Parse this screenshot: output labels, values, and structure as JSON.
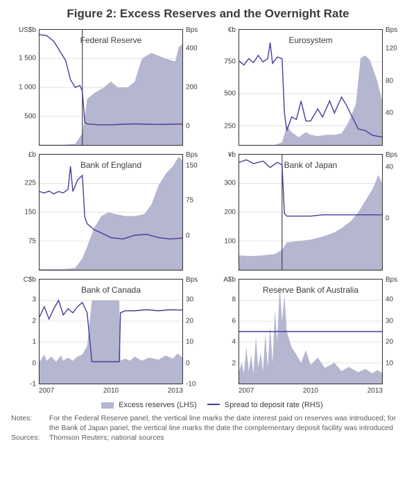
{
  "figure": {
    "title": "Figure 2: Excess Reserves and the Overnight Rate",
    "colors": {
      "area": "#b5b6d0",
      "line": "#4a399b",
      "border": "#2e2e2e",
      "gridline": "#d9d9d9",
      "text": "#3b3b3b",
      "background": "#ffffff"
    },
    "x_range": [
      2007,
      2013
    ],
    "legend": {
      "area": "Excess reserves (LHS)",
      "line": "Spread to deposit rate (RHS)"
    },
    "panels": [
      {
        "title": "Federal Reserve",
        "unit_l": "US$b",
        "unit_r": "Bps",
        "ylim_l": [
          0,
          2000
        ],
        "yticks_l": [
          500,
          1000,
          1500
        ],
        "ylim_r": [
          -100,
          500
        ],
        "yticks_r": [
          0,
          200,
          400
        ],
        "vline_year": 2008.8,
        "area_series": [
          [
            2007,
            5
          ],
          [
            2007.5,
            5
          ],
          [
            2008,
            5
          ],
          [
            2008.5,
            20
          ],
          [
            2008.8,
            200
          ],
          [
            2009,
            800
          ],
          [
            2009.3,
            900
          ],
          [
            2009.7,
            1000
          ],
          [
            2010,
            1100
          ],
          [
            2010.3,
            1000
          ],
          [
            2010.7,
            1000
          ],
          [
            2011,
            1100
          ],
          [
            2011.3,
            1500
          ],
          [
            2011.7,
            1600
          ],
          [
            2012,
            1550
          ],
          [
            2012.3,
            1500
          ],
          [
            2012.7,
            1450
          ],
          [
            2012.85,
            1700
          ],
          [
            2013,
            1750
          ]
        ],
        "line_series": [
          [
            2007,
            475
          ],
          [
            2007.3,
            470
          ],
          [
            2007.6,
            440
          ],
          [
            2007.9,
            380
          ],
          [
            2008.1,
            340
          ],
          [
            2008.3,
            240
          ],
          [
            2008.5,
            200
          ],
          [
            2008.7,
            210
          ],
          [
            2008.8,
            180
          ],
          [
            2008.9,
            20
          ],
          [
            2009,
            10
          ],
          [
            2009.5,
            5
          ],
          [
            2010,
            5
          ],
          [
            2010.5,
            8
          ],
          [
            2011,
            10
          ],
          [
            2011.5,
            8
          ],
          [
            2012,
            7
          ],
          [
            2012.5,
            8
          ],
          [
            2013,
            9
          ]
        ]
      },
      {
        "title": "Eurosystem",
        "unit_l": "€b",
        "unit_r": "Bps",
        "ylim_l": [
          100,
          1000
        ],
        "yticks_l": [
          250,
          500,
          750
        ],
        "ylim_r": [
          0,
          144
        ],
        "yticks_r": [
          40,
          80,
          120
        ],
        "area_series": [
          [
            2007,
            101
          ],
          [
            2007.5,
            101
          ],
          [
            2008,
            101
          ],
          [
            2008.5,
            101
          ],
          [
            2008.8,
            120
          ],
          [
            2009,
            250
          ],
          [
            2009.2,
            200
          ],
          [
            2009.5,
            160
          ],
          [
            2009.8,
            200
          ],
          [
            2010,
            180
          ],
          [
            2010.3,
            170
          ],
          [
            2010.7,
            180
          ],
          [
            2011,
            180
          ],
          [
            2011.3,
            190
          ],
          [
            2011.6,
            280
          ],
          [
            2011.9,
            420
          ],
          [
            2012.1,
            780
          ],
          [
            2012.3,
            800
          ],
          [
            2012.5,
            760
          ],
          [
            2012.8,
            600
          ],
          [
            2013,
            450
          ]
        ],
        "line_series": [
          [
            2007,
            105
          ],
          [
            2007.2,
            100
          ],
          [
            2007.4,
            108
          ],
          [
            2007.6,
            103
          ],
          [
            2007.8,
            112
          ],
          [
            2008,
            104
          ],
          [
            2008.2,
            108
          ],
          [
            2008.3,
            128
          ],
          [
            2008.4,
            102
          ],
          [
            2008.6,
            110
          ],
          [
            2008.8,
            108
          ],
          [
            2008.9,
            40
          ],
          [
            2009,
            18
          ],
          [
            2009.2,
            35
          ],
          [
            2009.4,
            32
          ],
          [
            2009.6,
            55
          ],
          [
            2009.8,
            30
          ],
          [
            2010,
            30
          ],
          [
            2010.3,
            45
          ],
          [
            2010.5,
            35
          ],
          [
            2010.8,
            55
          ],
          [
            2011,
            40
          ],
          [
            2011.3,
            60
          ],
          [
            2011.5,
            50
          ],
          [
            2011.7,
            38
          ],
          [
            2012,
            20
          ],
          [
            2012.3,
            18
          ],
          [
            2012.6,
            12
          ],
          [
            2013,
            10
          ]
        ]
      },
      {
        "title": "Bank of England",
        "unit_l": "£b",
        "unit_r": "Bps",
        "ylim_l": [
          0,
          300
        ],
        "yticks_l": [
          75,
          150,
          225
        ],
        "ylim_r": [
          -75,
          175
        ],
        "yticks_r": [
          0,
          75,
          150
        ],
        "area_series": [
          [
            2007,
            2
          ],
          [
            2007.5,
            2
          ],
          [
            2008,
            2
          ],
          [
            2008.5,
            5
          ],
          [
            2008.8,
            30
          ],
          [
            2009,
            60
          ],
          [
            2009.3,
            110
          ],
          [
            2009.6,
            140
          ],
          [
            2009.9,
            150
          ],
          [
            2010.2,
            145
          ],
          [
            2010.6,
            140
          ],
          [
            2011,
            140
          ],
          [
            2011.4,
            145
          ],
          [
            2011.7,
            170
          ],
          [
            2012,
            220
          ],
          [
            2012.3,
            250
          ],
          [
            2012.6,
            270
          ],
          [
            2012.85,
            295
          ],
          [
            2013,
            285
          ]
        ],
        "line_series": [
          [
            2007,
            95
          ],
          [
            2007.2,
            92
          ],
          [
            2007.4,
            96
          ],
          [
            2007.6,
            90
          ],
          [
            2007.8,
            95
          ],
          [
            2008,
            92
          ],
          [
            2008.2,
            100
          ],
          [
            2008.3,
            150
          ],
          [
            2008.4,
            95
          ],
          [
            2008.6,
            120
          ],
          [
            2008.8,
            130
          ],
          [
            2008.9,
            40
          ],
          [
            2009,
            25
          ],
          [
            2009.3,
            12
          ],
          [
            2009.6,
            5
          ],
          [
            2010,
            -5
          ],
          [
            2010.5,
            -8
          ],
          [
            2011,
            0
          ],
          [
            2011.5,
            2
          ],
          [
            2012,
            -5
          ],
          [
            2012.5,
            -8
          ],
          [
            2013,
            -6
          ]
        ]
      },
      {
        "title": "Bank of Japan",
        "unit_l": "¥b",
        "unit_r": "Bps",
        "ylim_l": [
          0,
          400
        ],
        "yticks_l": [
          100,
          200,
          300
        ],
        "ylim_r": [
          -40,
          50
        ],
        "yticks_r": [
          0,
          40
        ],
        "vline_year": 2008.8,
        "area_series": [
          [
            2007,
            50
          ],
          [
            2007.5,
            48
          ],
          [
            2008,
            50
          ],
          [
            2008.5,
            55
          ],
          [
            2008.8,
            70
          ],
          [
            2009,
            95
          ],
          [
            2009.5,
            100
          ],
          [
            2010,
            105
          ],
          [
            2010.5,
            115
          ],
          [
            2011,
            130
          ],
          [
            2011.3,
            145
          ],
          [
            2011.7,
            170
          ],
          [
            2012,
            200
          ],
          [
            2012.3,
            240
          ],
          [
            2012.6,
            280
          ],
          [
            2012.85,
            330
          ],
          [
            2013,
            300
          ]
        ],
        "line_series": [
          [
            2007,
            44
          ],
          [
            2007.3,
            46
          ],
          [
            2007.6,
            43
          ],
          [
            2008,
            45
          ],
          [
            2008.3,
            40
          ],
          [
            2008.6,
            44
          ],
          [
            2008.8,
            42
          ],
          [
            2008.9,
            4
          ],
          [
            2009,
            2
          ],
          [
            2009.5,
            2
          ],
          [
            2010,
            2
          ],
          [
            2010.5,
            3
          ],
          [
            2011,
            3
          ],
          [
            2011.5,
            3
          ],
          [
            2012,
            3
          ],
          [
            2012.5,
            3
          ],
          [
            2013,
            3
          ]
        ]
      },
      {
        "title": "Bank of Canada",
        "unit_l": "C$b",
        "unit_r": "Bps",
        "ylim_l": [
          -1,
          4
        ],
        "yticks_l": [
          -1,
          0,
          1,
          2,
          3
        ],
        "ylim_r": [
          -10,
          40
        ],
        "yticks_r": [
          -10,
          0,
          10,
          20,
          30
        ],
        "area_series": [
          [
            2007,
            0.05
          ],
          [
            2007.2,
            0.4
          ],
          [
            2007.3,
            0.1
          ],
          [
            2007.5,
            0.3
          ],
          [
            2007.7,
            0.05
          ],
          [
            2007.9,
            0.35
          ],
          [
            2008,
            0.1
          ],
          [
            2008.2,
            0.25
          ],
          [
            2008.4,
            0.1
          ],
          [
            2008.6,
            0.3
          ],
          [
            2008.8,
            0.4
          ],
          [
            2009,
            0.8
          ],
          [
            2009.2,
            3.0
          ],
          [
            2009.4,
            3.0
          ],
          [
            2009.6,
            3.0
          ],
          [
            2009.8,
            3.0
          ],
          [
            2010,
            3.0
          ],
          [
            2010.2,
            3.0
          ],
          [
            2010.35,
            3.0
          ],
          [
            2010.4,
            0.1
          ],
          [
            2010.6,
            0.2
          ],
          [
            2010.8,
            0.1
          ],
          [
            2011,
            0.3
          ],
          [
            2011.3,
            0.1
          ],
          [
            2011.6,
            0.25
          ],
          [
            2012,
            0.15
          ],
          [
            2012.3,
            0.35
          ],
          [
            2012.6,
            0.2
          ],
          [
            2012.8,
            0.45
          ],
          [
            2013,
            0.25
          ]
        ],
        "line_series": [
          [
            2007,
            22
          ],
          [
            2007.2,
            27
          ],
          [
            2007.4,
            21
          ],
          [
            2007.6,
            26
          ],
          [
            2007.8,
            30
          ],
          [
            2008,
            23
          ],
          [
            2008.2,
            26
          ],
          [
            2008.4,
            24
          ],
          [
            2008.6,
            27
          ],
          [
            2008.8,
            29
          ],
          [
            2009,
            24
          ],
          [
            2009.2,
            0.5
          ],
          [
            2009.4,
            0.5
          ],
          [
            2009.6,
            0.5
          ],
          [
            2009.8,
            0.5
          ],
          [
            2010,
            0.5
          ],
          [
            2010.2,
            0.5
          ],
          [
            2010.35,
            0.5
          ],
          [
            2010.4,
            24
          ],
          [
            2010.6,
            25
          ],
          [
            2011,
            25
          ],
          [
            2011.5,
            25.5
          ],
          [
            2012,
            25
          ],
          [
            2012.5,
            25.5
          ],
          [
            2013,
            25.3
          ]
        ]
      },
      {
        "title": "Reserve Bank of Australia",
        "unit_l": "A$b",
        "unit_r": "Bps",
        "ylim_l": [
          0,
          10
        ],
        "yticks_l": [
          2,
          4,
          6,
          8
        ],
        "ylim_r": [
          0,
          50
        ],
        "yticks_r": [
          10,
          20,
          30,
          40
        ],
        "area_series": [
          [
            2007,
            1.2
          ],
          [
            2007.1,
            2.0
          ],
          [
            2007.2,
            1.0
          ],
          [
            2007.3,
            3.5
          ],
          [
            2007.4,
            1.2
          ],
          [
            2007.5,
            2.8
          ],
          [
            2007.6,
            1.0
          ],
          [
            2007.7,
            4.5
          ],
          [
            2007.8,
            1.5
          ],
          [
            2007.9,
            3.0
          ],
          [
            2008,
            1.2
          ],
          [
            2008.1,
            4.8
          ],
          [
            2008.2,
            1.5
          ],
          [
            2008.3,
            5.5
          ],
          [
            2008.4,
            2.0
          ],
          [
            2008.5,
            7.0
          ],
          [
            2008.6,
            4.0
          ],
          [
            2008.7,
            9.5
          ],
          [
            2008.8,
            6.0
          ],
          [
            2008.9,
            8.5
          ],
          [
            2009,
            5.0
          ],
          [
            2009.2,
            3.5
          ],
          [
            2009.4,
            2.8
          ],
          [
            2009.6,
            2.0
          ],
          [
            2009.8,
            3.2
          ],
          [
            2010,
            1.8
          ],
          [
            2010.3,
            2.5
          ],
          [
            2010.6,
            1.5
          ],
          [
            2011,
            2.0
          ],
          [
            2011.3,
            1.2
          ],
          [
            2011.6,
            1.6
          ],
          [
            2012,
            1.1
          ],
          [
            2012.3,
            1.4
          ],
          [
            2012.6,
            1.0
          ],
          [
            2012.8,
            1.3
          ],
          [
            2013,
            1.05
          ]
        ],
        "line_series": [
          [
            2007,
            25
          ],
          [
            2008,
            25
          ],
          [
            2009,
            25
          ],
          [
            2010,
            25
          ],
          [
            2011,
            25
          ],
          [
            2012,
            25
          ],
          [
            2013,
            25
          ]
        ]
      }
    ],
    "x_ticks": [
      "2007",
      "2010",
      "2013"
    ],
    "notes_label": "Notes:",
    "notes_text": "For the Federal Reserve panel, the vertical line marks the date interest paid on reserves was introduced; for the Bank of Japan panel, the vertical line marks the date the complementary deposit facility was introduced",
    "sources_label": "Sources:",
    "sources_text": "Thomson Reuters; national sources"
  }
}
